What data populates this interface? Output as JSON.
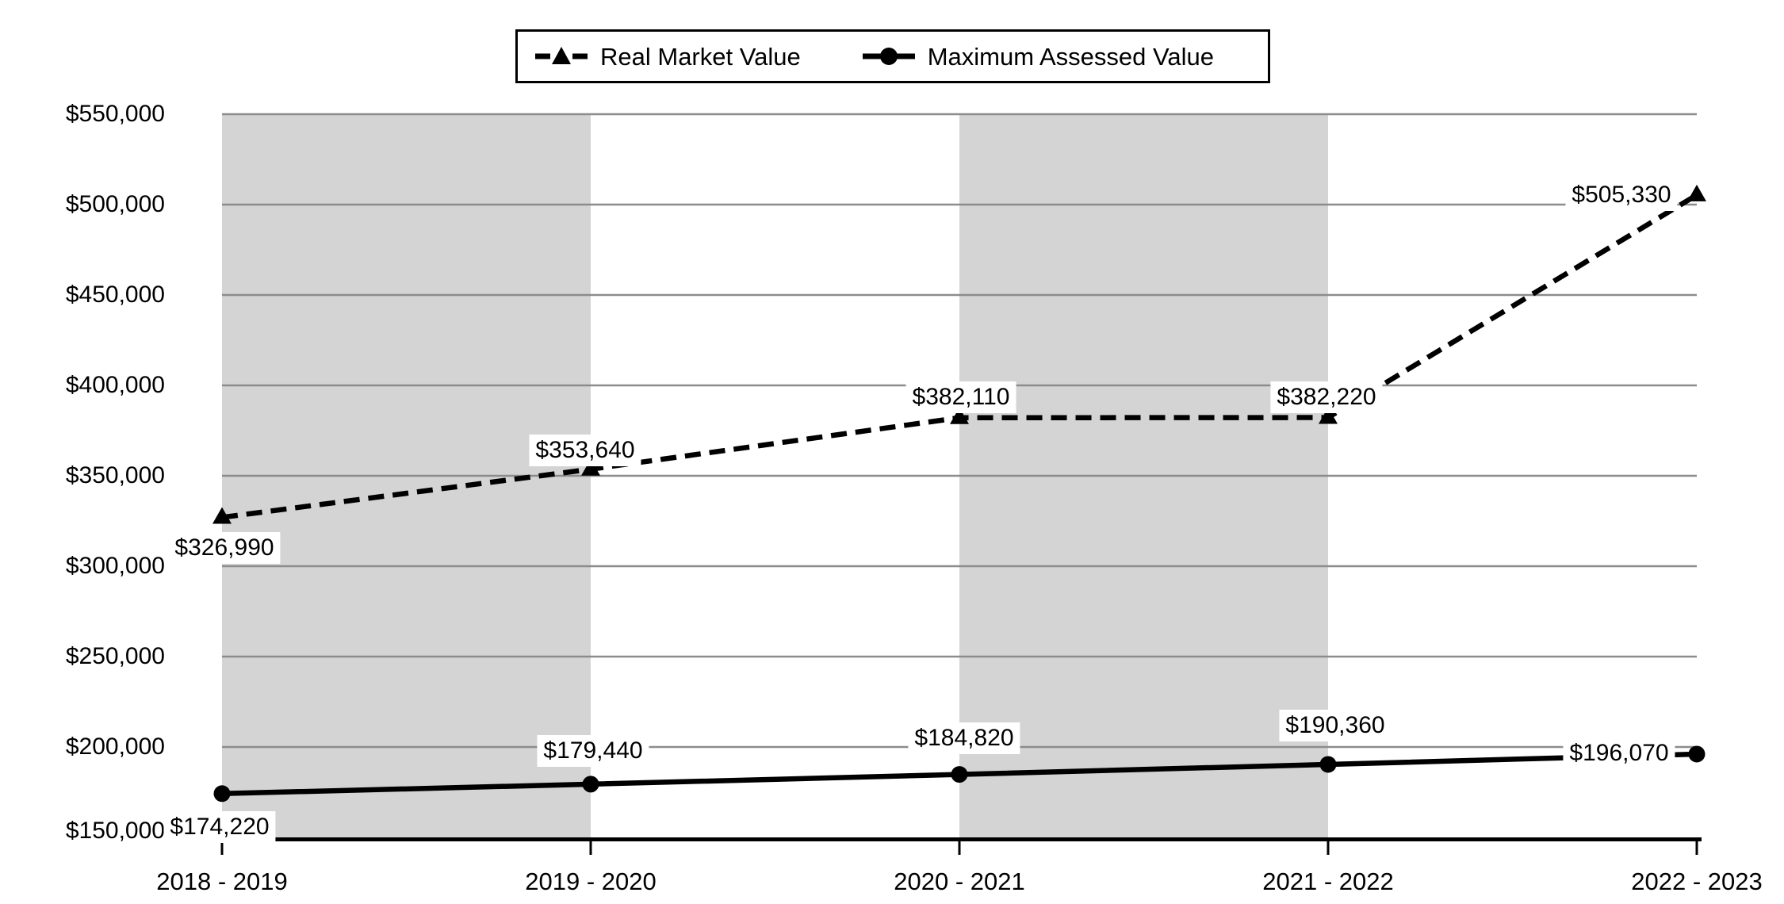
{
  "chart_data": {
    "type": "line",
    "title": "",
    "xlabel": "",
    "ylabel": "",
    "categories": [
      "2018 - 2019",
      "2019 - 2020",
      "2020 - 2021",
      "2021 - 2022",
      "2022 - 2023"
    ],
    "series": [
      {
        "name": "Real Market Value",
        "style": "dashed",
        "marker": "triangle",
        "values": [
          326990,
          353640,
          382110,
          382220,
          505330
        ],
        "labels": [
          "$326,990",
          "$353,640",
          "$382,110",
          "$382,220",
          "$505,330"
        ]
      },
      {
        "name": "Maximum Assessed Value",
        "style": "solid",
        "marker": "circle",
        "values": [
          174220,
          179440,
          184820,
          190360,
          196070
        ],
        "labels": [
          "$174,220",
          "$179,440",
          "$184,820",
          "$190,360",
          "$196,070"
        ]
      }
    ],
    "ylim": [
      150000,
      550000
    ],
    "ytick_step": 50000,
    "yticks": [
      "$550,000",
      "$500,000",
      "$450,000",
      "$400,000",
      "$350,000",
      "$300,000",
      "$250,000",
      "$200,000",
      "$150,000"
    ],
    "grid": "horizontal",
    "legend_position": "top-center",
    "background_bands": [
      [
        0,
        1
      ],
      [
        2,
        3
      ]
    ],
    "colors": {
      "series": "#000000",
      "gridline": "#8c8c8c",
      "band": "#d4d4d4",
      "label_bg": "#ffffff",
      "axis": "#000000"
    }
  }
}
